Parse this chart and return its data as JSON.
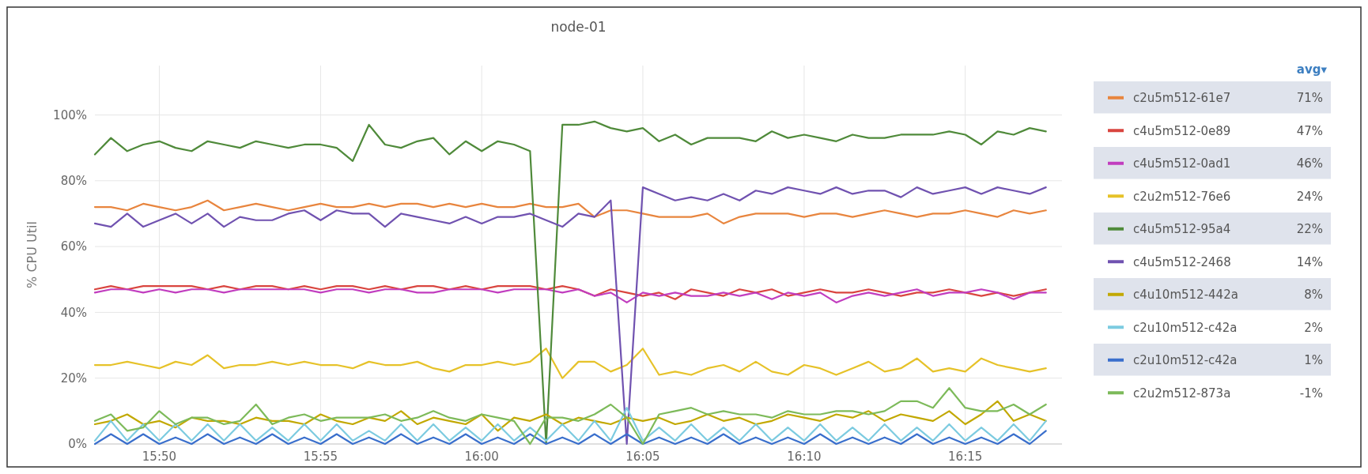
{
  "chart_data": {
    "type": "line",
    "title": "node-01",
    "ylabel": "% CPU Util",
    "legend_title": "avg▾",
    "legend": "right",
    "grid": true,
    "xlim": [
      15.8,
      16.3
    ],
    "xticks": [
      {
        "value": 15.8333,
        "label": "15:50"
      },
      {
        "value": 15.9167,
        "label": "15:55"
      },
      {
        "value": 16,
        "label": "16:00"
      },
      {
        "value": 16.0833,
        "label": "16:05"
      },
      {
        "value": 16.1667,
        "label": "16:10"
      },
      {
        "value": 16.25,
        "label": "16:15"
      }
    ],
    "ylim": [
      0,
      115
    ],
    "yticks": [
      {
        "value": 0,
        "label": "0%"
      },
      {
        "value": 20,
        "label": "20%"
      },
      {
        "value": 40,
        "label": "40%"
      },
      {
        "value": 60,
        "label": "60%"
      },
      {
        "value": 80,
        "label": "80%"
      },
      {
        "value": 100,
        "label": "100%"
      }
    ],
    "x": [
      15.8,
      15.8083,
      15.8167,
      15.825,
      15.8333,
      15.8417,
      15.85,
      15.8583,
      15.8667,
      15.875,
      15.8833,
      15.8917,
      15.9,
      15.9083,
      15.9167,
      15.925,
      15.9333,
      15.9417,
      15.95,
      15.9583,
      15.9667,
      15.975,
      15.9833,
      15.9917,
      16,
      16.0083,
      16.0167,
      16.025,
      16.0333,
      16.0417,
      16.05,
      16.0583,
      16.0667,
      16.075,
      16.0833,
      16.0917,
      16.1,
      16.1083,
      16.1167,
      16.125,
      16.1333,
      16.1417,
      16.15,
      16.1583,
      16.1667,
      16.175,
      16.1833,
      16.1917,
      16.2,
      16.2083,
      16.2167,
      16.225,
      16.2333,
      16.2417,
      16.25,
      16.2583,
      16.2667,
      16.275,
      16.2833,
      16.2917
    ],
    "series": [
      {
        "name": "c2u5m512-61e7",
        "color": "#e8853e",
        "values": [
          72,
          72,
          71,
          73,
          72,
          71,
          72,
          74,
          71,
          72,
          73,
          72,
          71,
          72,
          73,
          72,
          72,
          73,
          72,
          73,
          73,
          72,
          73,
          72,
          73,
          72,
          72,
          73,
          72,
          72,
          73,
          69,
          71,
          71,
          70,
          69,
          69,
          69,
          70,
          67,
          69,
          70,
          70,
          70,
          69,
          70,
          70,
          69,
          70,
          71,
          70,
          69,
          70,
          70,
          71,
          70,
          69,
          71,
          70,
          71
        ]
      },
      {
        "name": "c4u5m512-0e89",
        "color": "#d9453f",
        "values": [
          47,
          48,
          47,
          48,
          48,
          48,
          48,
          47,
          48,
          47,
          48,
          48,
          47,
          48,
          47,
          48,
          48,
          47,
          48,
          47,
          48,
          48,
          47,
          48,
          47,
          48,
          48,
          48,
          47,
          48,
          47,
          45,
          47,
          46,
          45,
          46,
          44,
          47,
          46,
          45,
          47,
          46,
          47,
          45,
          46,
          47,
          46,
          46,
          47,
          46,
          45,
          46,
          46,
          47,
          46,
          45,
          46,
          45,
          46,
          47
        ]
      },
      {
        "name": "c4u5m512-0ad1",
        "color": "#c13dbf",
        "values": [
          46,
          47,
          47,
          46,
          47,
          46,
          47,
          47,
          46,
          47,
          47,
          47,
          47,
          47,
          46,
          47,
          47,
          46,
          47,
          47,
          46,
          46,
          47,
          47,
          47,
          46,
          47,
          47,
          47,
          46,
          47,
          45,
          46,
          43,
          46,
          45,
          46,
          45,
          45,
          46,
          45,
          46,
          44,
          46,
          45,
          46,
          43,
          45,
          46,
          45,
          46,
          47,
          45,
          46,
          46,
          47,
          46,
          44,
          46,
          46
        ]
      },
      {
        "name": "c2u2m512-76e6",
        "color": "#e6c229",
        "values": [
          24,
          24,
          25,
          24,
          23,
          25,
          24,
          27,
          23,
          24,
          24,
          25,
          24,
          25,
          24,
          24,
          23,
          25,
          24,
          24,
          25,
          23,
          22,
          24,
          24,
          25,
          24,
          25,
          29,
          20,
          25,
          25,
          22,
          24,
          29,
          21,
          22,
          21,
          23,
          24,
          22,
          25,
          22,
          21,
          24,
          23,
          21,
          23,
          25,
          22,
          23,
          26,
          22,
          23,
          22,
          26,
          24,
          23,
          22,
          23
        ]
      },
      {
        "name": "c4u5m512-95a4",
        "color": "#4f8a3a",
        "values": [
          88,
          93,
          89,
          91,
          92,
          90,
          89,
          92,
          91,
          90,
          92,
          91,
          90,
          91,
          91,
          90,
          86,
          97,
          91,
          90,
          92,
          93,
          88,
          92,
          89,
          92,
          91,
          89,
          0,
          97,
          97,
          98,
          96,
          95,
          96,
          92,
          94,
          91,
          93,
          93,
          93,
          92,
          95,
          93,
          94,
          93,
          92,
          94,
          93,
          93,
          94,
          94,
          94,
          95,
          94,
          91,
          95,
          94,
          96,
          95
        ]
      },
      {
        "name": "c4u5m512-2468",
        "color": "#7052b0",
        "values": [
          67,
          66,
          70,
          66,
          68,
          70,
          67,
          70,
          66,
          69,
          68,
          68,
          70,
          71,
          68,
          71,
          70,
          70,
          66,
          70,
          69,
          68,
          67,
          69,
          67,
          69,
          69,
          70,
          68,
          66,
          70,
          69,
          74,
          0,
          78,
          76,
          74,
          75,
          74,
          76,
          74,
          77,
          76,
          78,
          77,
          76,
          78,
          76,
          77,
          77,
          75,
          78,
          76,
          77,
          78,
          76,
          78,
          77,
          76,
          78
        ]
      },
      {
        "name": "c4u10m512-442a",
        "color": "#c2a800",
        "values": [
          6,
          7,
          9,
          6,
          7,
          5,
          8,
          7,
          7,
          6,
          8,
          7,
          7,
          6,
          9,
          7,
          6,
          8,
          7,
          10,
          6,
          8,
          7,
          6,
          9,
          4,
          8,
          7,
          9,
          6,
          8,
          7,
          6,
          8,
          7,
          8,
          6,
          7,
          9,
          7,
          8,
          6,
          7,
          9,
          8,
          7,
          9,
          8,
          10,
          7,
          9,
          8,
          7,
          10,
          6,
          9,
          13,
          7,
          9,
          7
        ]
      },
      {
        "name": "c2u10m512-c42a",
        "color": "#7ccbe0",
        "values": [
          1,
          7,
          1,
          6,
          1,
          6,
          1,
          6,
          1,
          6,
          1,
          5,
          1,
          6,
          1,
          6,
          1,
          4,
          1,
          6,
          1,
          6,
          1,
          5,
          1,
          6,
          1,
          5,
          1,
          6,
          1,
          7,
          1,
          11,
          1,
          5,
          1,
          6,
          1,
          5,
          1,
          6,
          1,
          5,
          1,
          6,
          1,
          5,
          1,
          6,
          1,
          5,
          1,
          6,
          1,
          5,
          1,
          6,
          1,
          7
        ]
      },
      {
        "name": "c2u10m512-c42a",
        "color": "#3a6fcc",
        "values": [
          0,
          3,
          0,
          3,
          0,
          2,
          0,
          3,
          0,
          2,
          0,
          3,
          0,
          2,
          0,
          3,
          0,
          2,
          0,
          3,
          0,
          2,
          0,
          3,
          0,
          2,
          0,
          3,
          0,
          2,
          0,
          3,
          0,
          3,
          0,
          2,
          0,
          2,
          0,
          3,
          0,
          2,
          0,
          2,
          0,
          3,
          0,
          2,
          0,
          2,
          0,
          3,
          0,
          2,
          0,
          2,
          0,
          3,
          0,
          4
        ]
      },
      {
        "name": "c2u2m512-873a",
        "color": "#7dba5a",
        "values": [
          7,
          9,
          4,
          5,
          10,
          6,
          8,
          8,
          6,
          7,
          12,
          6,
          8,
          9,
          7,
          8,
          8,
          8,
          9,
          7,
          8,
          10,
          8,
          7,
          9,
          8,
          7,
          0,
          8,
          8,
          7,
          9,
          12,
          8,
          0,
          9,
          10,
          11,
          9,
          10,
          9,
          9,
          8,
          10,
          9,
          9,
          10,
          10,
          9,
          10,
          13,
          13,
          11,
          17,
          11,
          10,
          10,
          12,
          9,
          12
        ]
      }
    ],
    "annotations": [
      "71%",
      "47%",
      "46%",
      "24%",
      "22%",
      "14%",
      "8%",
      "2%",
      "1%",
      "-1%"
    ]
  }
}
